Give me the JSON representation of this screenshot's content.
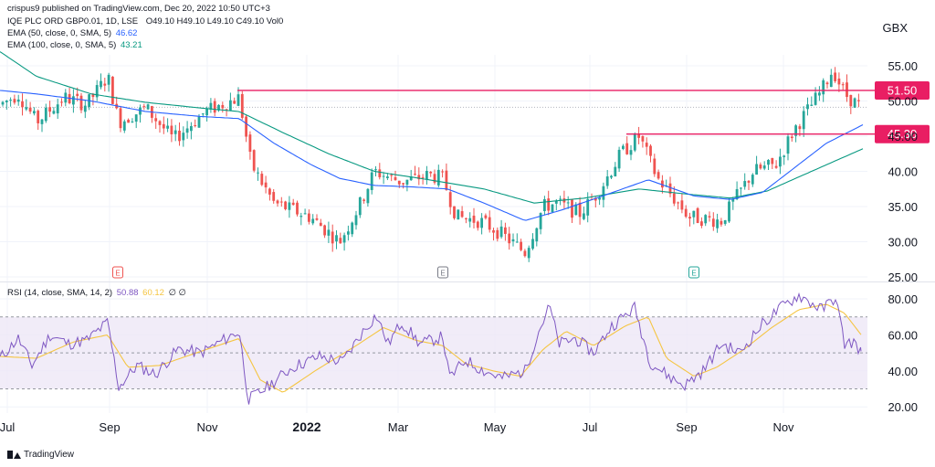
{
  "header": {
    "publisher": "crispus9 published on TradingView.com, Dec 20, 2022 10:50 UTC+3",
    "symbol": "IQE PLC ORD GBP0.01, 1D, LSE",
    "ohlc": "O49.10 H49.10 L49.10 C49.10 Vol0",
    "ema50_label": "EMA (50, close, 0, SMA, 5)",
    "ema50_value": "46.62",
    "ema100_label": "EMA (100, close, 0, SMA, 5)",
    "ema100_value": "43.21",
    "rsi_label": "RSI (14, close, SMA, 14, 2)",
    "rsi_value": "50.88",
    "rsi_ma_value": "60.12",
    "rsi_extra": "∅ ∅"
  },
  "currency": "GBX",
  "footer": {
    "brand": "TradingView"
  },
  "colors": {
    "up": "#26a69a",
    "down": "#ef5350",
    "ema50": "#2962ff",
    "ema100": "#089981",
    "level": "#e91e63",
    "rsi": "#7e57c2",
    "rsi_ma": "#f5c542",
    "band": "#ede7f6",
    "grid": "#f0f3fa",
    "axis_text": "#131722"
  },
  "chart_data": [
    {
      "type": "candlestick",
      "name": "price-panel",
      "x_ticks": [
        "Jul",
        "Sep",
        "Nov",
        "2022",
        "Mar",
        "May",
        "Jul",
        "Sep",
        "Nov"
      ],
      "y_ticks": [
        "55.00",
        "50.00",
        "45.00",
        "40.00",
        "35.00",
        "30.00",
        "25.00"
      ],
      "ylim": [
        25,
        57
      ],
      "events": [
        "E",
        "E",
        "E"
      ],
      "levels": [
        {
          "value": 51.5,
          "label": "51.50"
        },
        {
          "value": 45.3,
          "label": "45.30"
        }
      ],
      "last_close": 49.1,
      "price_knots": [
        [
          0,
          49.5
        ],
        [
          20,
          51
        ],
        [
          40,
          47
        ],
        [
          70,
          50.5
        ],
        [
          95,
          49.5
        ],
        [
          118,
          53.5
        ],
        [
          130,
          47
        ],
        [
          160,
          49
        ],
        [
          190,
          44.5
        ],
        [
          225,
          48.5
        ],
        [
          262,
          50.5
        ],
        [
          275,
          41
        ],
        [
          300,
          35.5
        ],
        [
          340,
          33.5
        ],
        [
          372,
          30
        ],
        [
          395,
          35.5
        ],
        [
          410,
          40
        ],
        [
          440,
          38.5
        ],
        [
          470,
          39.5
        ],
        [
          485,
          39
        ],
        [
          500,
          33.5
        ],
        [
          525,
          33
        ],
        [
          545,
          31.5
        ],
        [
          575,
          28.5
        ],
        [
          595,
          35
        ],
        [
          610,
          35.5
        ],
        [
          635,
          34
        ],
        [
          655,
          37
        ],
        [
          680,
          42.5
        ],
        [
          700,
          45
        ],
        [
          720,
          39
        ],
        [
          755,
          33.5
        ],
        [
          790,
          33
        ],
        [
          825,
          40
        ],
        [
          850,
          41
        ],
        [
          870,
          46
        ],
        [
          900,
          51.5
        ],
        [
          912,
          54.5
        ],
        [
          925,
          51
        ],
        [
          943,
          49.1
        ]
      ],
      "ema50_knots": [
        [
          0,
          51.5
        ],
        [
          40,
          51
        ],
        [
          100,
          50
        ],
        [
          160,
          48.5
        ],
        [
          220,
          47.8
        ],
        [
          262,
          47.5
        ],
        [
          300,
          44
        ],
        [
          340,
          41
        ],
        [
          372,
          39
        ],
        [
          410,
          38
        ],
        [
          450,
          37.8
        ],
        [
          490,
          37.5
        ],
        [
          530,
          35.5
        ],
        [
          575,
          33
        ],
        [
          615,
          34.5
        ],
        [
          660,
          36.5
        ],
        [
          710,
          38.8
        ],
        [
          760,
          36.5
        ],
        [
          800,
          36
        ],
        [
          835,
          37
        ],
        [
          870,
          40.5
        ],
        [
          905,
          44
        ],
        [
          945,
          46.62
        ]
      ],
      "ema100_knots": [
        [
          0,
          57
        ],
        [
          40,
          53.5
        ],
        [
          100,
          51
        ],
        [
          160,
          49.8
        ],
        [
          220,
          49
        ],
        [
          262,
          48.5
        ],
        [
          310,
          45.5
        ],
        [
          360,
          42.5
        ],
        [
          410,
          40
        ],
        [
          470,
          38.8
        ],
        [
          530,
          37.5
        ],
        [
          585,
          35.5
        ],
        [
          640,
          36.2
        ],
        [
          700,
          37.5
        ],
        [
          750,
          36.8
        ],
        [
          800,
          36.2
        ],
        [
          840,
          37.2
        ],
        [
          880,
          39.5
        ],
        [
          915,
          41.5
        ],
        [
          945,
          43.21
        ]
      ]
    },
    {
      "type": "line",
      "name": "rsi-panel",
      "y_ticks": [
        "80.00",
        "60.00",
        "40.00",
        "20.00"
      ],
      "ylim": [
        13,
        85
      ],
      "band": [
        30,
        70
      ],
      "midline": 50,
      "rsi_last": 50.88,
      "rsi_ma_last": 60.12,
      "rsi_knots": [
        [
          0,
          47
        ],
        [
          20,
          58
        ],
        [
          35,
          43
        ],
        [
          55,
          60
        ],
        [
          75,
          55
        ],
        [
          95,
          57
        ],
        [
          118,
          67
        ],
        [
          130,
          31
        ],
        [
          150,
          43
        ],
        [
          170,
          38
        ],
        [
          195,
          52
        ],
        [
          220,
          50
        ],
        [
          262,
          62
        ],
        [
          272,
          24
        ],
        [
          290,
          30
        ],
        [
          320,
          42
        ],
        [
          350,
          48
        ],
        [
          375,
          45
        ],
        [
          395,
          60
        ],
        [
          412,
          71
        ],
        [
          425,
          55
        ],
        [
          440,
          67
        ],
        [
          460,
          55
        ],
        [
          485,
          59
        ],
        [
          492,
          36
        ],
        [
          510,
          46
        ],
        [
          530,
          40
        ],
        [
          550,
          36
        ],
        [
          575,
          40
        ],
        [
          590,
          62
        ],
        [
          602,
          76
        ],
        [
          612,
          55
        ],
        [
          630,
          58
        ],
        [
          650,
          50
        ],
        [
          670,
          65
        ],
        [
          695,
          75
        ],
        [
          712,
          45
        ],
        [
          735,
          36
        ],
        [
          750,
          32
        ],
        [
          770,
          40
        ],
        [
          790,
          55
        ],
        [
          810,
          50
        ],
        [
          835,
          66
        ],
        [
          855,
          75
        ],
        [
          875,
          82
        ],
        [
          900,
          74
        ],
        [
          915,
          81
        ],
        [
          925,
          55
        ],
        [
          935,
          56
        ],
        [
          943,
          50.88
        ]
      ],
      "rsi_ma_knots": [
        [
          0,
          48
        ],
        [
          40,
          47
        ],
        [
          80,
          56
        ],
        [
          118,
          60
        ],
        [
          140,
          42
        ],
        [
          175,
          43
        ],
        [
          215,
          50
        ],
        [
          262,
          58
        ],
        [
          285,
          35
        ],
        [
          310,
          28
        ],
        [
          345,
          40
        ],
        [
          390,
          54
        ],
        [
          420,
          64
        ],
        [
          455,
          57
        ],
        [
          485,
          54
        ],
        [
          510,
          44
        ],
        [
          540,
          40
        ],
        [
          570,
          37
        ],
        [
          595,
          52
        ],
        [
          620,
          62
        ],
        [
          650,
          54
        ],
        [
          685,
          65
        ],
        [
          710,
          70
        ],
        [
          730,
          47
        ],
        [
          760,
          37
        ],
        [
          785,
          42
        ],
        [
          815,
          52
        ],
        [
          845,
          64
        ],
        [
          875,
          74
        ],
        [
          905,
          77
        ],
        [
          925,
          72
        ],
        [
          943,
          60.12
        ]
      ]
    }
  ]
}
